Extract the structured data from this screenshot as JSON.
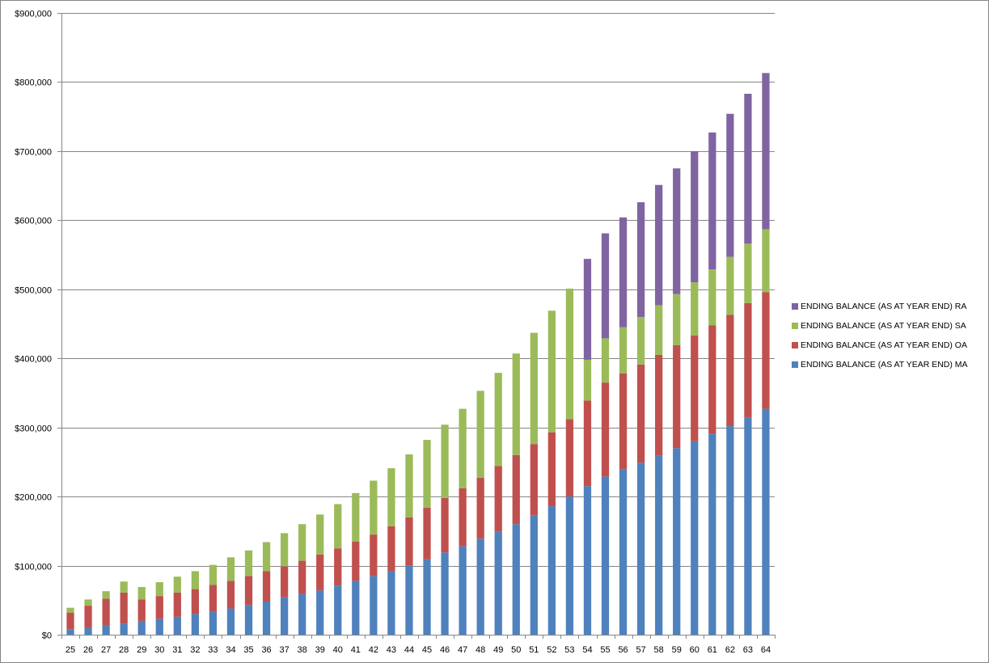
{
  "chart_data": {
    "type": "bar",
    "stacked": true,
    "categories": [
      "25",
      "26",
      "27",
      "28",
      "29",
      "30",
      "31",
      "32",
      "33",
      "34",
      "35",
      "36",
      "37",
      "38",
      "39",
      "40",
      "41",
      "42",
      "43",
      "44",
      "45",
      "46",
      "47",
      "48",
      "49",
      "50",
      "51",
      "52",
      "53",
      "54",
      "55",
      "56",
      "57",
      "58",
      "59",
      "60",
      "61",
      "62",
      "63",
      "64"
    ],
    "ylim": [
      0,
      900000
    ],
    "ytick_step": 100000,
    "yticks": [
      "$0",
      "$100,000",
      "$200,000",
      "$300,000",
      "$400,000",
      "$500,000",
      "$600,000",
      "$700,000",
      "$800,000",
      "$900,000"
    ],
    "grid": true,
    "legend_position": "right",
    "series": [
      {
        "name": "ENDING  BALANCE (AS AT YEAR END)  MA",
        "color": "#4F81BD",
        "values": [
          8000,
          10000,
          14000,
          16000,
          20000,
          23000,
          26000,
          30000,
          33000,
          38000,
          43000,
          48000,
          54000,
          59000,
          64000,
          71000,
          78000,
          85000,
          92000,
          100000,
          109000,
          119000,
          128000,
          139000,
          149000,
          160000,
          173000,
          186000,
          200000,
          215000,
          229000,
          239000,
          249000,
          259000,
          270000,
          280000,
          291000,
          302000,
          314000,
          327000
        ]
      },
      {
        "name": "ENDING  BALANCE (AS AT YEAR END)  OA",
        "color": "#C0504D",
        "values": [
          24000,
          32000,
          38000,
          45000,
          31000,
          33000,
          35000,
          36000,
          39000,
          40000,
          42000,
          44000,
          45000,
          48000,
          52000,
          54000,
          57000,
          60000,
          65000,
          70000,
          75000,
          79000,
          84000,
          88000,
          95000,
          100000,
          103000,
          107000,
          112000,
          124000,
          136000,
          139000,
          142000,
          146000,
          149000,
          153000,
          157000,
          161000,
          166000,
          169000
        ]
      },
      {
        "name": "ENDING  BALANCE (AS AT YEAR END)  SA",
        "color": "#9BBB59",
        "values": [
          7000,
          9000,
          11000,
          16000,
          18000,
          20000,
          23000,
          26000,
          29000,
          34000,
          37000,
          42000,
          48000,
          53000,
          58000,
          64000,
          70000,
          78000,
          84000,
          91000,
          98000,
          106000,
          115000,
          126000,
          135000,
          147000,
          161000,
          176000,
          189000,
          59000,
          64000,
          67000,
          69000,
          72000,
          74000,
          77000,
          81000,
          84000,
          86000,
          91000
        ]
      },
      {
        "name": "ENDING  BALANCE (AS AT YEAR END)  RA",
        "color": "#8064A2",
        "values": [
          0,
          0,
          0,
          0,
          0,
          0,
          0,
          0,
          0,
          0,
          0,
          0,
          0,
          0,
          0,
          0,
          0,
          0,
          0,
          0,
          0,
          0,
          0,
          0,
          0,
          0,
          0,
          0,
          0,
          146000,
          152000,
          159000,
          166000,
          174000,
          182000,
          190000,
          198000,
          207000,
          217000,
          226000
        ]
      }
    ]
  }
}
